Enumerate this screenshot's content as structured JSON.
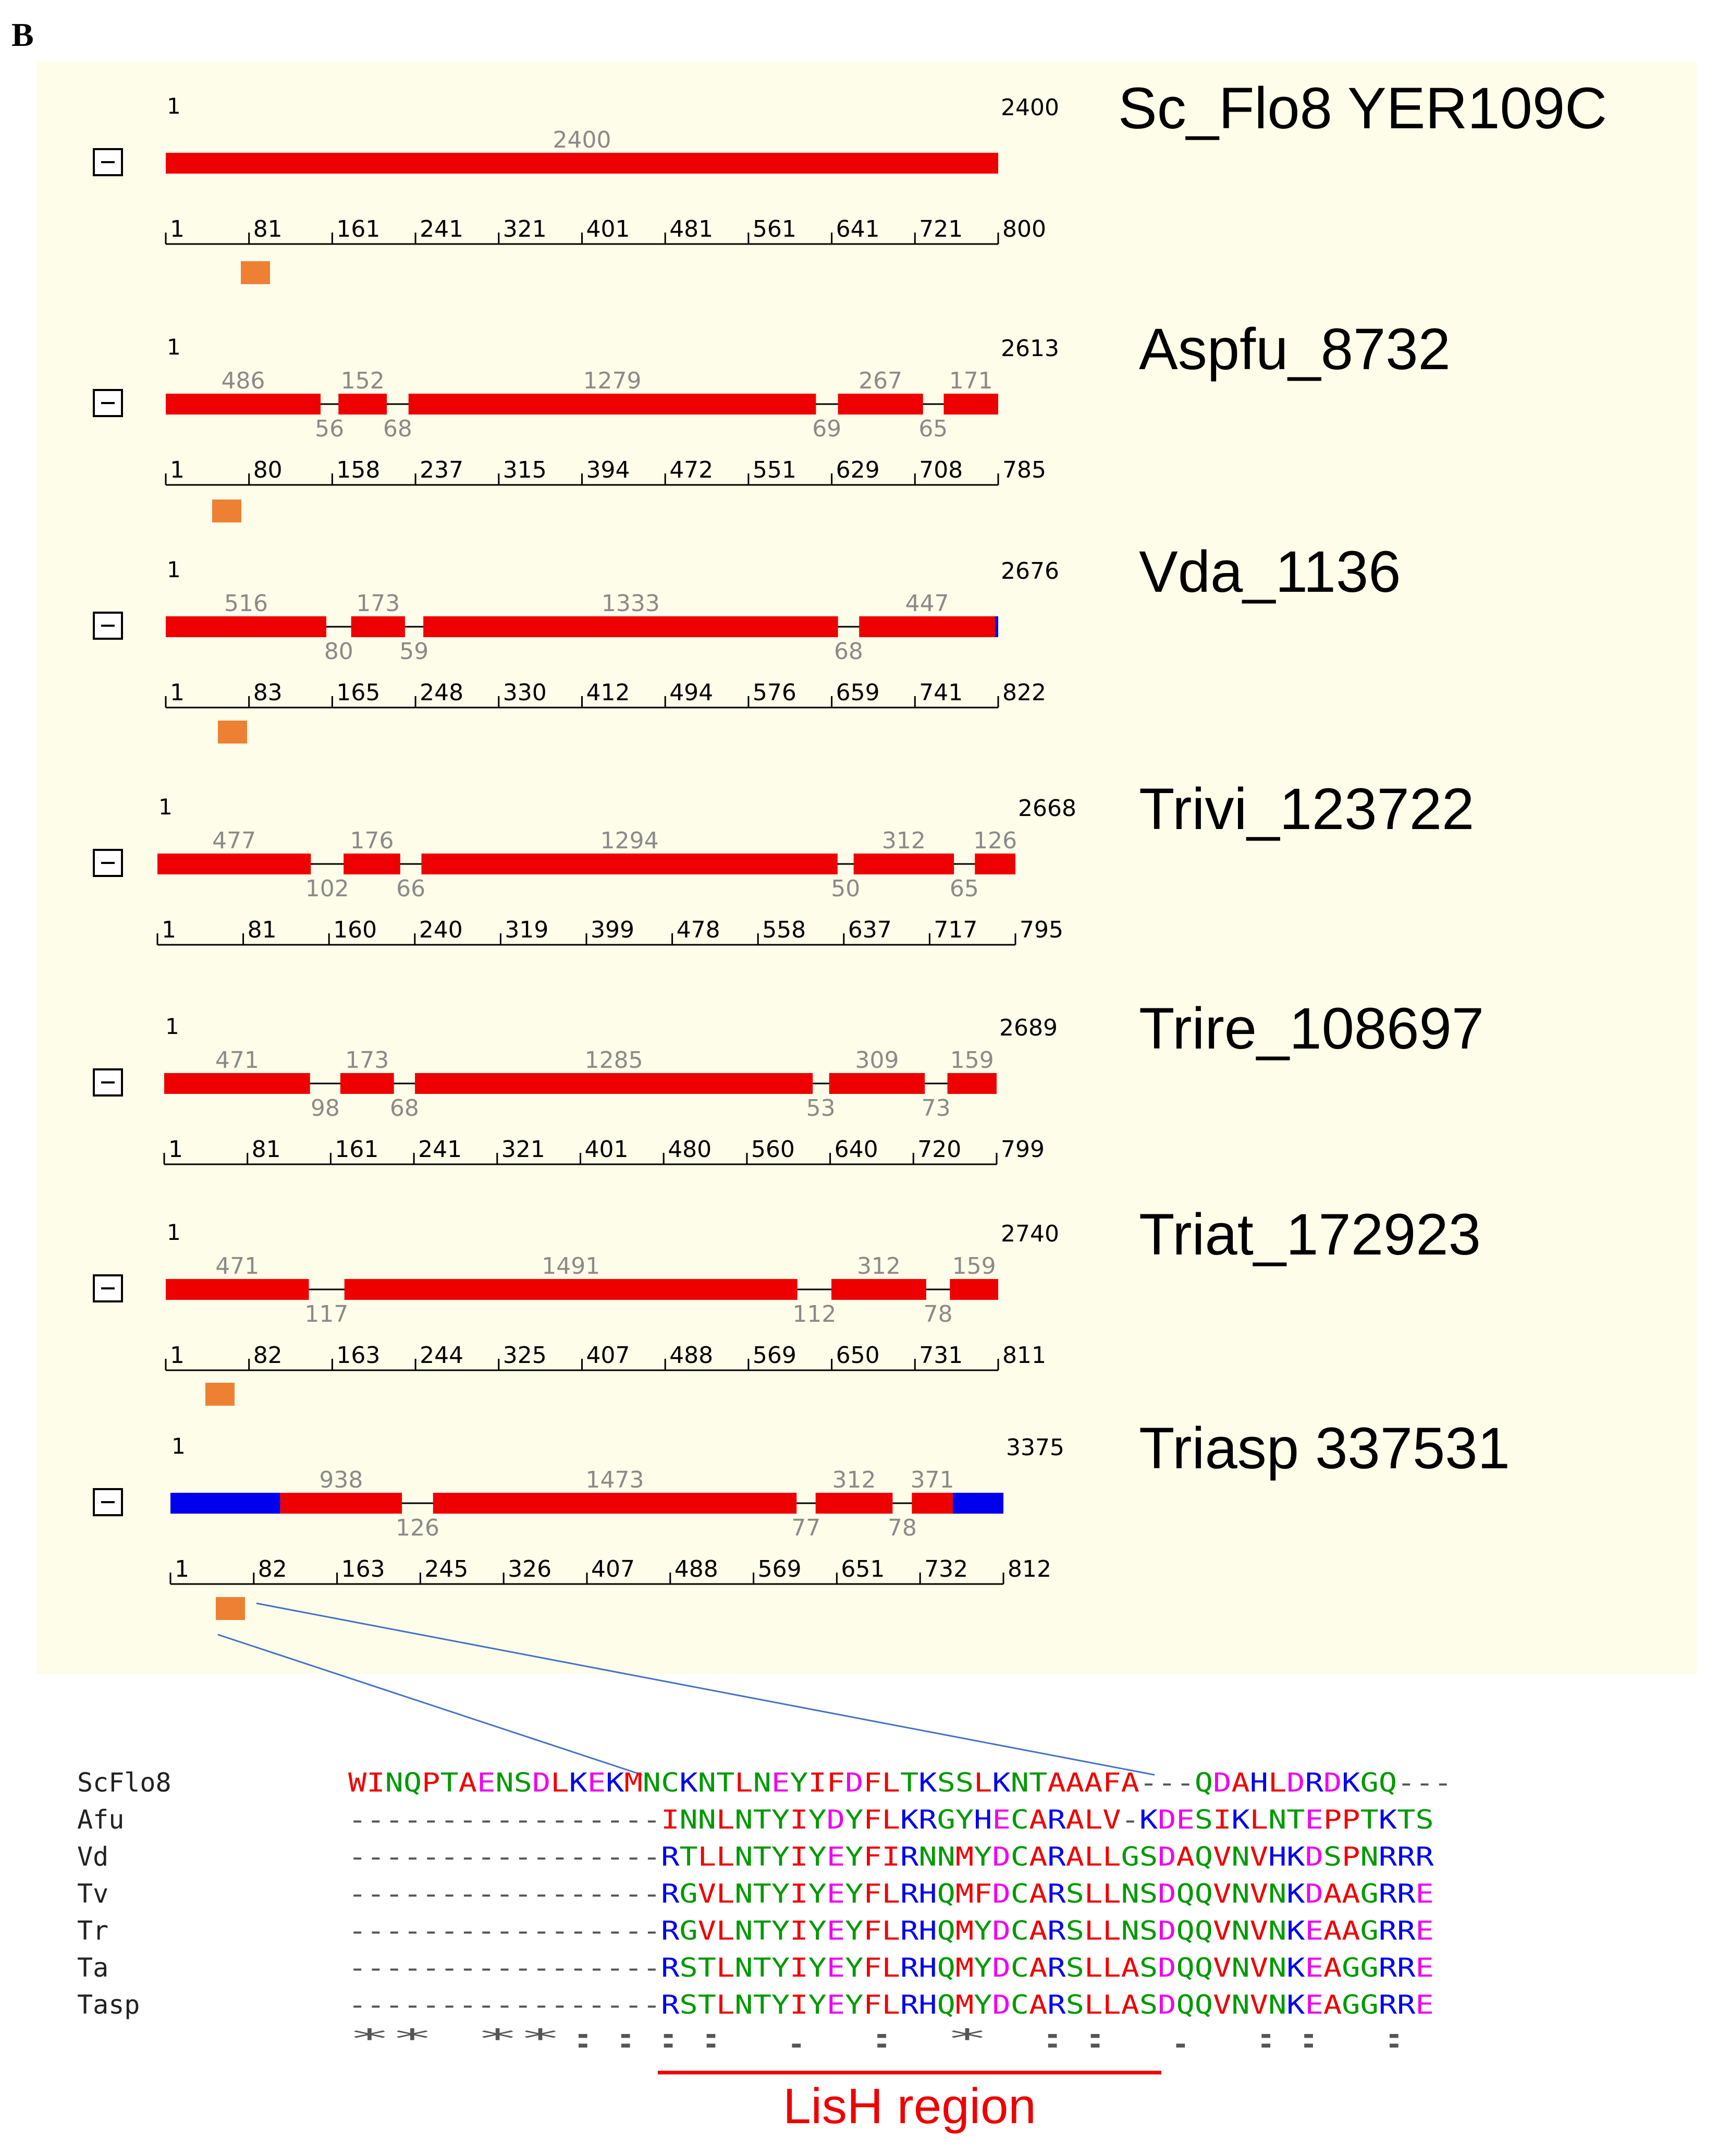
{
  "panel_label": "B",
  "colors": {
    "panel_bg": "#fdfde9",
    "exon": "#ee0000",
    "utr": "#0000ee",
    "domain": "#ee8033",
    "line": "#000000",
    "label_gray": "#8a8a8a",
    "connector": "#4472c4",
    "lish": "#ee0000"
  },
  "genes": [
    {
      "name": "Sc_Flo8 YER109C",
      "start": "1",
      "end": "2400",
      "segments": [
        {
          "type": "exon",
          "label": "2400",
          "from": 0,
          "to": 2400
        }
      ],
      "introns": [],
      "axis_ticks": [
        "1",
        "81",
        "161",
        "241",
        "321",
        "401",
        "481",
        "561",
        "641",
        "721",
        "800"
      ],
      "domain": true
    },
    {
      "name": "Aspfu_8732",
      "start": "1",
      "end": "2613",
      "segments": [
        {
          "type": "exon",
          "label": "486",
          "from": 0,
          "to": 486
        },
        {
          "type": "exon",
          "label": "152",
          "from": 542,
          "to": 694
        },
        {
          "type": "exon",
          "label": "1279",
          "from": 762,
          "to": 2041
        },
        {
          "type": "exon",
          "label": "267",
          "from": 2110,
          "to": 2377
        },
        {
          "type": "exon",
          "label": "171",
          "from": 2442,
          "to": 2613
        }
      ],
      "introns": [
        {
          "label": "56",
          "at": 514
        },
        {
          "label": "68",
          "at": 728
        },
        {
          "label": "69",
          "at": 2075
        },
        {
          "label": "65",
          "at": 2409
        }
      ],
      "axis_ticks": [
        "1",
        "80",
        "158",
        "237",
        "315",
        "394",
        "472",
        "551",
        "629",
        "708",
        "785"
      ],
      "domain": true
    },
    {
      "name": "Vda_1136",
      "start": "1",
      "end": "2676",
      "segments": [
        {
          "type": "exon",
          "label": "516",
          "from": 0,
          "to": 516
        },
        {
          "type": "exon",
          "label": "173",
          "from": 596,
          "to": 769
        },
        {
          "type": "exon",
          "label": "1333",
          "from": 828,
          "to": 2161
        },
        {
          "type": "exon",
          "label": "447",
          "from": 2229,
          "to": 2666
        },
        {
          "type": "utr",
          "label": "",
          "from": 2666,
          "to": 2676
        }
      ],
      "introns": [
        {
          "label": "80",
          "at": 556
        },
        {
          "label": "59",
          "at": 798
        },
        {
          "label": "68",
          "at": 2195
        }
      ],
      "axis_ticks": [
        "1",
        "83",
        "165",
        "248",
        "330",
        "412",
        "494",
        "576",
        "659",
        "741",
        "822"
      ],
      "domain": true
    },
    {
      "name": "Trivi_123722",
      "start": "1",
      "end": "2668",
      "segments": [
        {
          "type": "exon",
          "label": "477",
          "from": 0,
          "to": 477
        },
        {
          "type": "exon",
          "label": "176",
          "from": 579,
          "to": 755
        },
        {
          "type": "exon",
          "label": "1294",
          "from": 821,
          "to": 2115
        },
        {
          "type": "exon",
          "label": "312",
          "from": 2165,
          "to": 2477
        },
        {
          "type": "exon",
          "label": "126",
          "from": 2542,
          "to": 2668
        }
      ],
      "introns": [
        {
          "label": "102",
          "at": 528
        },
        {
          "label": "66",
          "at": 788
        },
        {
          "label": "50",
          "at": 2140
        },
        {
          "label": "65",
          "at": 2509
        }
      ],
      "axis_ticks": [
        "1",
        "81",
        "160",
        "240",
        "319",
        "399",
        "478",
        "558",
        "637",
        "717",
        "795"
      ],
      "domain": false
    },
    {
      "name": "Trire_108697",
      "start": "1",
      "end": "2689",
      "segments": [
        {
          "type": "exon",
          "label": "471",
          "from": 0,
          "to": 471
        },
        {
          "type": "exon",
          "label": "173",
          "from": 569,
          "to": 742
        },
        {
          "type": "exon",
          "label": "1285",
          "from": 810,
          "to": 2095
        },
        {
          "type": "exon",
          "label": "309",
          "from": 2148,
          "to": 2457
        },
        {
          "type": "exon",
          "label": "159",
          "from": 2530,
          "to": 2689
        }
      ],
      "introns": [
        {
          "label": "98",
          "at": 520
        },
        {
          "label": "68",
          "at": 776
        },
        {
          "label": "53",
          "at": 2121
        },
        {
          "label": "73",
          "at": 2493
        }
      ],
      "axis_ticks": [
        "1",
        "81",
        "161",
        "241",
        "321",
        "401",
        "480",
        "560",
        "640",
        "720",
        "799"
      ],
      "domain": false
    },
    {
      "name": "Triat_172923",
      "start": "1",
      "end": "2740",
      "segments": [
        {
          "type": "exon",
          "label": "471",
          "from": 0,
          "to": 471
        },
        {
          "type": "exon",
          "label": "1491",
          "from": 588,
          "to": 2079
        },
        {
          "type": "exon",
          "label": "312",
          "from": 2191,
          "to": 2503
        },
        {
          "type": "exon",
          "label": "159",
          "from": 2581,
          "to": 2740
        }
      ],
      "introns": [
        {
          "label": "117",
          "at": 529
        },
        {
          "label": "112",
          "at": 2135
        },
        {
          "label": "78",
          "at": 2542
        }
      ],
      "axis_ticks": [
        "1",
        "82",
        "163",
        "244",
        "325",
        "407",
        "488",
        "569",
        "650",
        "731",
        "811"
      ],
      "domain": true
    },
    {
      "name": "Triasp 337531",
      "start": "1",
      "end": "3375",
      "segments": [
        {
          "type": "utr",
          "label": "",
          "from": 0,
          "to": 445
        },
        {
          "type": "exon",
          "label": "938",
          "from": 445,
          "to": 938
        },
        {
          "type": "exon",
          "label": "1473",
          "from": 1064,
          "to": 2537
        },
        {
          "type": "exon",
          "label": "312",
          "from": 2614,
          "to": 2926
        },
        {
          "type": "exon",
          "label": "371",
          "from": 3004,
          "to": 3170
        },
        {
          "type": "utr",
          "label": "",
          "from": 3170,
          "to": 3375
        }
      ],
      "introns": [
        {
          "label": "126",
          "at": 1001
        },
        {
          "label": "77",
          "at": 2575
        },
        {
          "label": "78",
          "at": 2965
        }
      ],
      "axis_ticks": [
        "1",
        "82",
        "163",
        "245",
        "326",
        "407",
        "488",
        "569",
        "651",
        "732",
        "812"
      ],
      "domain": true
    }
  ],
  "alignment": {
    "rows": [
      {
        "label": "ScFlo8",
        "seq": "WINQPTAENSDLKEKMNCKNTLNEYIFDFLTKSSLKNTAAAFA---QDAHLDRDKGQ---"
      },
      {
        "label": "Afu",
        "seq": "-----------------INNLNTYIYDYFLKRGYHECARALV-KDESIKLNTEPPTKTS"
      },
      {
        "label": "Vd",
        "seq": "-----------------RTLLNTYIYEYFIRNNMYDCARALLGSDAQVNVHKDSPNRRR"
      },
      {
        "label": "Tv",
        "seq": "-----------------RGVLNTYIYEYFLRHQMFDCARSLLNSDQQVNVNKDAAGRRE"
      },
      {
        "label": "Tr",
        "seq": "-----------------RGVLNTYIYEYFLRHQMYDCARSLLNSDQQVNVNKEAAGRRE"
      },
      {
        "label": "Ta",
        "seq": "-----------------RSTLNTYIYEYFLRHQMYDCARSLLASDQQVNVNKEAGGRRE"
      },
      {
        "label": "Tasp",
        "seq": "-----------------RSTLNTYIYEYFLRHQMYDCARSLLASDQQVNVNKEAGGRRE"
      }
    ],
    "conservation": "                     ** **:::: .     : * ::      . ::  :  ",
    "region_label": "LisH region",
    "residue_colors": {
      "acidic": "#ee00ee",
      "basic": "#0000ee",
      "hydrophobic": "#ee0000",
      "polar": "#009900",
      "gap": "#555555"
    }
  }
}
